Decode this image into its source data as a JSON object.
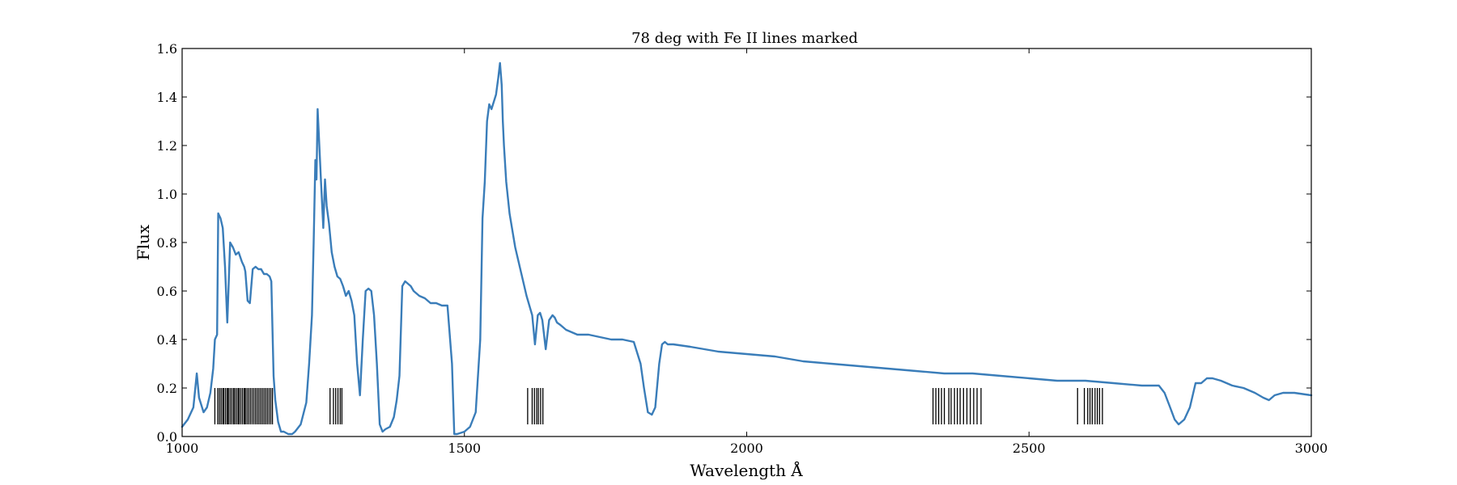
{
  "chart_data": {
    "type": "line",
    "title": "78 deg with Fe II lines marked",
    "xlabel": "Wavelength Å",
    "ylabel": "Flux",
    "xlim": [
      1000,
      3000
    ],
    "ylim": [
      0.0,
      1.6
    ],
    "x_ticks": [
      1000,
      1500,
      2000,
      2500,
      3000
    ],
    "x_tick_labels": [
      "1000",
      "1500",
      "2000",
      "2500",
      "3000"
    ],
    "y_ticks": [
      0.0,
      0.2,
      0.4,
      0.6,
      0.8,
      1.0,
      1.2,
      1.4,
      1.6
    ],
    "y_tick_labels": [
      "0.0",
      "0.2",
      "0.4",
      "0.6",
      "0.8",
      "1.0",
      "1.2",
      "1.4",
      "1.6"
    ],
    "grid": false,
    "series": [
      {
        "color": "#3a7db9",
        "x": [
          1000,
          1010,
          1020,
          1026,
          1030,
          1038,
          1044,
          1050,
          1055,
          1058,
          1062,
          1064,
          1068,
          1072,
          1076,
          1080,
          1082,
          1085,
          1090,
          1095,
          1100,
          1106,
          1110,
          1112,
          1116,
          1120,
          1125,
          1130,
          1135,
          1140,
          1145,
          1150,
          1155,
          1158,
          1162,
          1165,
          1170,
          1175,
          1180,
          1188,
          1195,
          1200,
          1210,
          1220,
          1225,
          1230,
          1233,
          1236,
          1238,
          1240,
          1243,
          1246,
          1250,
          1253,
          1256,
          1260,
          1265,
          1270,
          1275,
          1280,
          1285,
          1290,
          1295,
          1300,
          1305,
          1310,
          1315,
          1320,
          1325,
          1330,
          1335,
          1340,
          1345,
          1350,
          1355,
          1360,
          1368,
          1375,
          1380,
          1385,
          1390,
          1395,
          1400,
          1405,
          1410,
          1420,
          1430,
          1440,
          1450,
          1460,
          1470,
          1478,
          1482,
          1487,
          1500,
          1510,
          1520,
          1528,
          1532,
          1536,
          1540,
          1544,
          1548,
          1552,
          1556,
          1560,
          1563,
          1566,
          1568,
          1570,
          1574,
          1580,
          1590,
          1600,
          1610,
          1620,
          1625,
          1630,
          1634,
          1638,
          1644,
          1650,
          1656,
          1660,
          1664,
          1670,
          1680,
          1700,
          1720,
          1740,
          1760,
          1780,
          1800,
          1812,
          1818,
          1825,
          1832,
          1838,
          1845,
          1850,
          1855,
          1860,
          1870,
          1900,
          1950,
          2000,
          2050,
          2100,
          2150,
          2200,
          2250,
          2300,
          2350,
          2400,
          2450,
          2500,
          2550,
          2600,
          2650,
          2700,
          2720,
          2730,
          2740,
          2750,
          2758,
          2765,
          2775,
          2785,
          2795,
          2805,
          2815,
          2825,
          2840,
          2860,
          2880,
          2900,
          2915,
          2925,
          2935,
          2950,
          2970,
          3000
        ],
        "y": [
          0.04,
          0.07,
          0.12,
          0.26,
          0.16,
          0.1,
          0.12,
          0.18,
          0.28,
          0.4,
          0.42,
          0.92,
          0.9,
          0.86,
          0.7,
          0.47,
          0.6,
          0.8,
          0.78,
          0.75,
          0.76,
          0.72,
          0.7,
          0.68,
          0.56,
          0.55,
          0.69,
          0.7,
          0.69,
          0.69,
          0.67,
          0.67,
          0.66,
          0.64,
          0.25,
          0.15,
          0.06,
          0.02,
          0.02,
          0.01,
          0.01,
          0.02,
          0.05,
          0.14,
          0.3,
          0.5,
          0.8,
          1.14,
          1.06,
          1.35,
          1.2,
          1.05,
          0.86,
          1.06,
          0.95,
          0.88,
          0.76,
          0.7,
          0.66,
          0.65,
          0.62,
          0.58,
          0.6,
          0.56,
          0.5,
          0.3,
          0.17,
          0.4,
          0.6,
          0.61,
          0.6,
          0.5,
          0.3,
          0.05,
          0.02,
          0.03,
          0.04,
          0.08,
          0.15,
          0.25,
          0.62,
          0.64,
          0.63,
          0.62,
          0.6,
          0.58,
          0.57,
          0.55,
          0.55,
          0.54,
          0.54,
          0.3,
          0.01,
          0.01,
          0.02,
          0.04,
          0.1,
          0.4,
          0.9,
          1.05,
          1.3,
          1.37,
          1.35,
          1.38,
          1.41,
          1.48,
          1.54,
          1.45,
          1.3,
          1.2,
          1.05,
          0.92,
          0.78,
          0.68,
          0.58,
          0.5,
          0.38,
          0.5,
          0.51,
          0.48,
          0.36,
          0.48,
          0.5,
          0.49,
          0.47,
          0.46,
          0.44,
          0.42,
          0.42,
          0.41,
          0.4,
          0.4,
          0.39,
          0.3,
          0.2,
          0.1,
          0.09,
          0.12,
          0.3,
          0.38,
          0.39,
          0.38,
          0.38,
          0.37,
          0.35,
          0.34,
          0.33,
          0.31,
          0.3,
          0.29,
          0.28,
          0.27,
          0.26,
          0.26,
          0.25,
          0.24,
          0.23,
          0.23,
          0.22,
          0.21,
          0.21,
          0.21,
          0.18,
          0.12,
          0.07,
          0.05,
          0.07,
          0.12,
          0.22,
          0.22,
          0.24,
          0.24,
          0.23,
          0.21,
          0.2,
          0.18,
          0.16,
          0.15,
          0.17,
          0.18,
          0.18,
          0.17
        ]
      }
    ],
    "marker_lines": {
      "y_range": [
        0.05,
        0.2
      ],
      "color": "#000000",
      "x": [
        1058,
        1063,
        1066,
        1069,
        1072,
        1074,
        1077,
        1080,
        1082,
        1085,
        1088,
        1091,
        1093,
        1096,
        1099,
        1101,
        1104,
        1107,
        1110,
        1112,
        1115,
        1118,
        1121,
        1124,
        1127,
        1130,
        1133,
        1136,
        1139,
        1142,
        1145,
        1148,
        1151,
        1154,
        1157,
        1160,
        1262,
        1268,
        1272,
        1276,
        1280,
        1283,
        1612,
        1620,
        1624,
        1628,
        1631,
        1635,
        1639,
        2330,
        2335,
        2340,
        2345,
        2350,
        2358,
        2362,
        2368,
        2373,
        2378,
        2384,
        2390,
        2396,
        2402,
        2408,
        2415,
        2586,
        2598,
        2604,
        2608,
        2612,
        2617,
        2621,
        2625,
        2630
      ]
    }
  }
}
